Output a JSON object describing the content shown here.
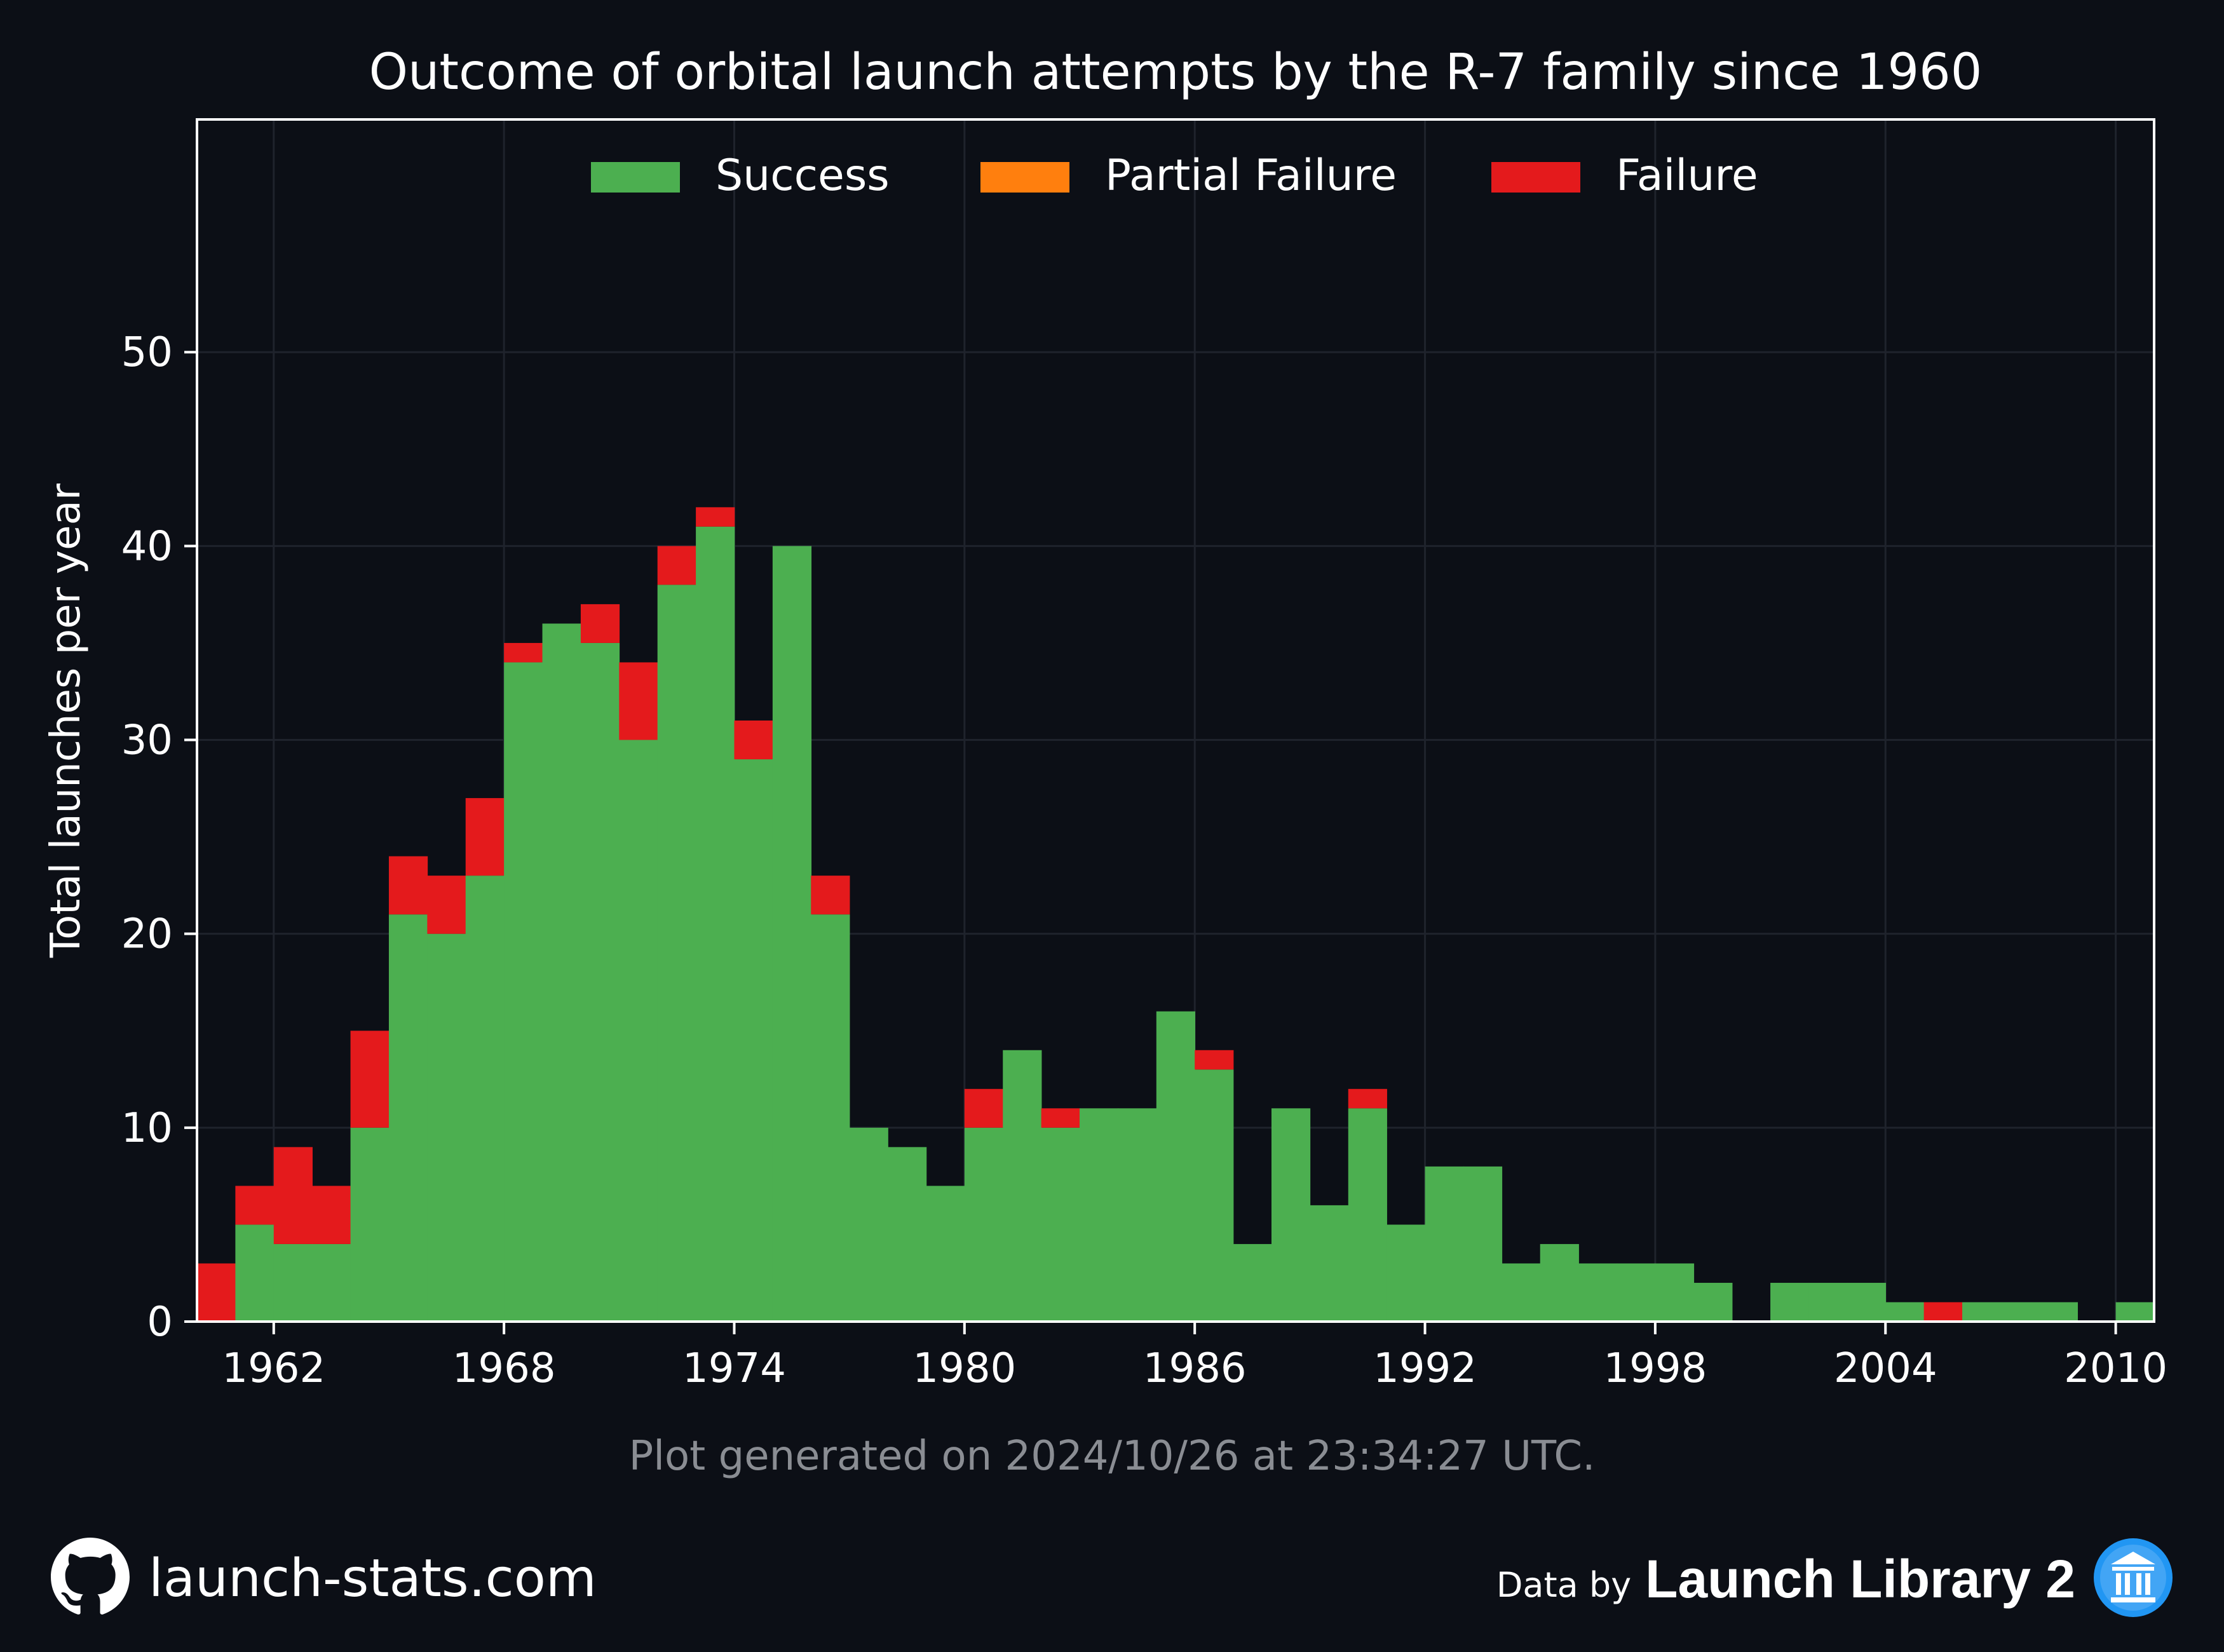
{
  "chart_data": {
    "type": "bar",
    "stacked": true,
    "title": "Outcome of orbital launch attempts by the R-7 family since 1960",
    "ylabel": "Total launches per year",
    "xlabel": "",
    "x": [
      1960,
      1961,
      1962,
      1963,
      1964,
      1965,
      1966,
      1967,
      1968,
      1969,
      1970,
      1971,
      1972,
      1973,
      1974,
      1975,
      1976,
      1977,
      1978,
      1979,
      1980,
      1981,
      1982,
      1983,
      1984,
      1985,
      1986,
      1987,
      1988,
      1989,
      1990,
      1991,
      1992,
      1993,
      1994,
      1995,
      1996,
      1997,
      1998,
      1999,
      2000,
      2001,
      2002,
      2003,
      2004,
      2005,
      2006,
      2007,
      2008,
      2009,
      2010
    ],
    "series": [
      {
        "name": "Success",
        "color": "#4caf50",
        "values": [
          0,
          5,
          4,
          4,
          10,
          21,
          20,
          23,
          34,
          36,
          35,
          30,
          38,
          41,
          29,
          40,
          21,
          10,
          9,
          7,
          10,
          14,
          10,
          11,
          11,
          16,
          13,
          4,
          11,
          6,
          11,
          5,
          8,
          8,
          3,
          4,
          3,
          3,
          3,
          2,
          0,
          2,
          2,
          2,
          1,
          0,
          1,
          1,
          1,
          0,
          1
        ]
      },
      {
        "name": "Partial Failure",
        "color": "#ff7f0e",
        "values": [
          0,
          0,
          0,
          0,
          0,
          0,
          0,
          0,
          0,
          0,
          0,
          0,
          0,
          0,
          0,
          0,
          0,
          0,
          0,
          0,
          0,
          0,
          0,
          0,
          0,
          0,
          0,
          0,
          0,
          0,
          0,
          0,
          0,
          0,
          0,
          0,
          0,
          0,
          0,
          0,
          0,
          0,
          0,
          0,
          0,
          0,
          0,
          0,
          0,
          0,
          0
        ]
      },
      {
        "name": "Failure",
        "color": "#e41a1c",
        "values": [
          3,
          2,
          5,
          3,
          5,
          3,
          3,
          4,
          1,
          0,
          2,
          4,
          2,
          1,
          2,
          0,
          2,
          0,
          0,
          0,
          2,
          0,
          1,
          0,
          0,
          0,
          1,
          0,
          0,
          0,
          1,
          0,
          0,
          0,
          0,
          0,
          0,
          0,
          0,
          0,
          0,
          0,
          0,
          0,
          0,
          1,
          0,
          0,
          0,
          0,
          0
        ]
      }
    ],
    "xlim": [
      1960,
      2011
    ],
    "ylim": [
      0,
      62
    ],
    "xticks": [
      1962,
      1968,
      1974,
      1980,
      1986,
      1992,
      1998,
      2004,
      2010
    ],
    "yticks": [
      0,
      10,
      20,
      30,
      40,
      50
    ],
    "grid": true,
    "legend": "top-center"
  },
  "footer": {
    "generated": "Plot generated on 2024/10/26 at 23:34:27 UTC.",
    "site": "launch-stats.com",
    "credit_prefix": "Data by",
    "credit_source": "Launch Library 2"
  },
  "icons": {
    "site": "github-icon",
    "source": "launch-library-icon"
  }
}
